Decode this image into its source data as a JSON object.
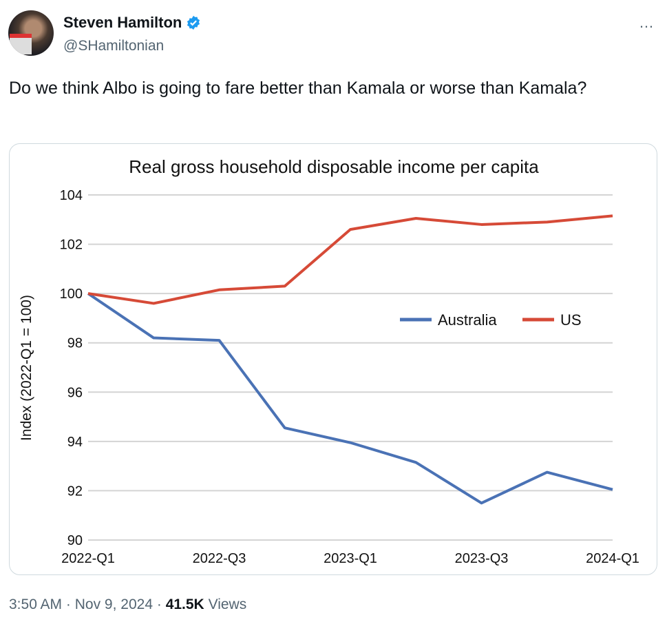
{
  "tweet": {
    "author_name": "Steven Hamilton",
    "handle": "@SHamiltonian",
    "more_icon": "…",
    "text": "Do we think Albo is going to fare better than Kamala or worse than Kamala?",
    "time": "3:50 AM",
    "date": "Nov 9, 2024",
    "sep": "·",
    "views_count": "41.5K",
    "views_label": "Views"
  },
  "chart_data": {
    "type": "line",
    "title": "Real gross household disposable income per capita",
    "xlabel": "",
    "ylabel": "Index (2022-Q1 = 100)",
    "x": [
      "2022-Q1",
      "2022-Q2",
      "2022-Q3",
      "2022-Q4",
      "2023-Q1",
      "2023-Q2",
      "2023-Q3",
      "2023-Q4",
      "2024-Q1"
    ],
    "xtick_labels": [
      "2022-Q1",
      "2022-Q3",
      "2023-Q1",
      "2023-Q3",
      "2024-Q1"
    ],
    "ylim": [
      90,
      104
    ],
    "yticks": [
      90,
      92,
      94,
      96,
      98,
      100,
      102,
      104
    ],
    "grid": true,
    "legend": "center-right",
    "series": [
      {
        "name": "Australia",
        "color": "#4a72b5",
        "values": [
          100,
          98.2,
          98.1,
          94.55,
          93.95,
          93.15,
          91.5,
          92.75,
          92.05
        ]
      },
      {
        "name": "US",
        "color": "#d64a37",
        "values": [
          100,
          99.6,
          100.15,
          100.3,
          102.6,
          103.05,
          102.8,
          102.9,
          103.15
        ]
      }
    ]
  }
}
